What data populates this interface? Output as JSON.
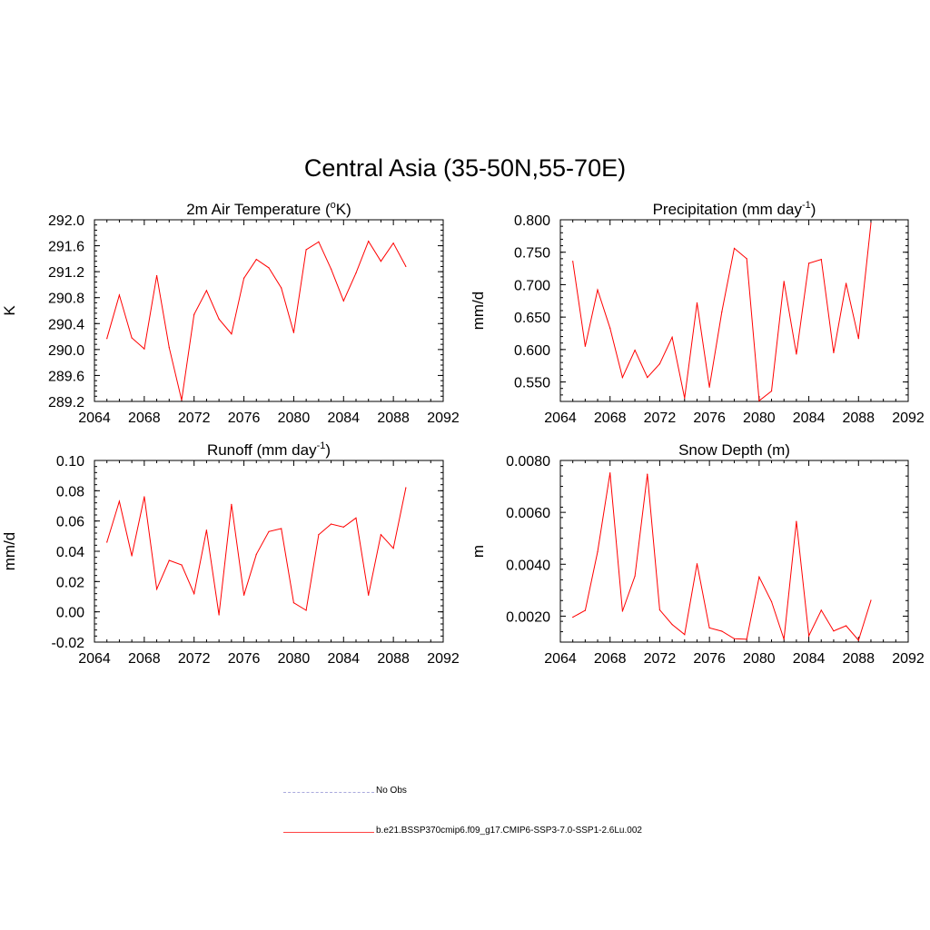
{
  "title": "Central Asia (35-50N,55-70E)",
  "legend": [
    {
      "label": "No Obs",
      "style": "dashed",
      "color": "#aaaadd"
    },
    {
      "label": "b.e21.BSSP370cmip6.f09_g17.CMIP6-SSP3-7.0-SSP1-2.6Lu.002",
      "style": "solid",
      "color": "#ff0000"
    }
  ],
  "chart_data": [
    {
      "type": "line",
      "title": "2m Air Temperature (°K)",
      "title_main": "2m Air Temperature (",
      "title_sup": "o",
      "title_after": "K)",
      "ylabel": "K",
      "xlim": [
        2064,
        2092
      ],
      "ylim": [
        289.2,
        292.0
      ],
      "xticks": [
        2064,
        2068,
        2072,
        2076,
        2080,
        2084,
        2088,
        2092
      ],
      "yticks": [
        "289.2",
        "289.6",
        "290.0",
        "290.4",
        "290.8",
        "291.2",
        "291.6",
        "292.0"
      ],
      "x": [
        2065,
        2066,
        2067,
        2068,
        2069,
        2070,
        2071,
        2072,
        2073,
        2074,
        2075,
        2076,
        2077,
        2078,
        2079,
        2080,
        2081,
        2082,
        2083,
        2084,
        2085,
        2086,
        2087,
        2088,
        2089
      ],
      "y": [
        290.17,
        290.84,
        290.18,
        290.01,
        291.14,
        290.03,
        289.22,
        290.54,
        290.91,
        290.47,
        290.24,
        291.1,
        291.39,
        291.26,
        290.95,
        290.26,
        291.54,
        291.66,
        291.24,
        290.75,
        291.18,
        291.67,
        291.36,
        291.64,
        291.28
      ],
      "color": "#ff0000"
    },
    {
      "type": "line",
      "title": "Precipitation (mm day-1)",
      "title_main": "Precipitation (mm day",
      "title_sup": "-1",
      "title_after": ")",
      "ylabel": "mm/d",
      "xlim": [
        2064,
        2092
      ],
      "ylim": [
        0.52,
        0.8
      ],
      "xticks": [
        2064,
        2068,
        2072,
        2076,
        2080,
        2084,
        2088,
        2092
      ],
      "yticks": [
        "0.550",
        "0.600",
        "0.650",
        "0.700",
        "0.750",
        "0.800"
      ],
      "x": [
        2065,
        2066,
        2067,
        2068,
        2069,
        2070,
        2071,
        2072,
        2073,
        2074,
        2075,
        2076,
        2077,
        2078,
        2079,
        2080,
        2081,
        2082,
        2083,
        2084,
        2085,
        2086,
        2087,
        2088,
        2089
      ],
      "y": [
        0.736,
        0.605,
        0.692,
        0.633,
        0.557,
        0.599,
        0.557,
        0.578,
        0.619,
        0.525,
        0.672,
        0.542,
        0.658,
        0.756,
        0.74,
        0.521,
        0.536,
        0.705,
        0.593,
        0.733,
        0.739,
        0.595,
        0.702,
        0.617,
        0.795
      ],
      "color": "#ff0000"
    },
    {
      "type": "line",
      "title": "Runoff (mm day-1)",
      "title_main": "Runoff (mm day",
      "title_sup": "-1",
      "title_after": ")",
      "ylabel": "mm/d",
      "xlim": [
        2064,
        2092
      ],
      "ylim": [
        -0.02,
        0.1
      ],
      "xticks": [
        2064,
        2068,
        2072,
        2076,
        2080,
        2084,
        2088,
        2092
      ],
      "yticks": [
        "-0.02",
        "0.00",
        "0.02",
        "0.04",
        "0.06",
        "0.08",
        "0.10"
      ],
      "x": [
        2065,
        2066,
        2067,
        2068,
        2069,
        2070,
        2071,
        2072,
        2073,
        2074,
        2075,
        2076,
        2077,
        2078,
        2079,
        2080,
        2081,
        2082,
        2083,
        2084,
        2085,
        2086,
        2087,
        2088,
        2089
      ],
      "y": [
        0.046,
        0.073,
        0.037,
        0.076,
        0.015,
        0.034,
        0.031,
        0.012,
        0.054,
        -0.002,
        0.071,
        0.011,
        0.038,
        0.053,
        0.055,
        0.006,
        0.001,
        0.051,
        0.058,
        0.056,
        0.062,
        0.011,
        0.051,
        0.042,
        0.082
      ],
      "color": "#ff0000"
    },
    {
      "type": "line",
      "title": "Snow Depth (m)",
      "title_main": "Snow Depth (m)",
      "title_sup": "",
      "title_after": "",
      "ylabel": "m",
      "xlim": [
        2064,
        2092
      ],
      "ylim": [
        0.001,
        0.008
      ],
      "xticks": [
        2064,
        2068,
        2072,
        2076,
        2080,
        2084,
        2088,
        2092
      ],
      "yticks": [
        "0.0020",
        "0.0040",
        "0.0060",
        "0.0080"
      ],
      "x": [
        2065,
        2066,
        2067,
        2068,
        2069,
        2070,
        2071,
        2072,
        2073,
        2074,
        2075,
        2076,
        2077,
        2078,
        2079,
        2080,
        2081,
        2082,
        2083,
        2084,
        2085,
        2086,
        2087,
        2088,
        2089
      ],
      "y": [
        0.00196,
        0.00222,
        0.00448,
        0.00752,
        0.00219,
        0.00354,
        0.00747,
        0.00224,
        0.00168,
        0.00129,
        0.00402,
        0.00155,
        0.00142,
        0.00113,
        0.00111,
        0.00351,
        0.00256,
        0.00111,
        0.00565,
        0.00124,
        0.00223,
        0.00143,
        0.00163,
        0.00107,
        0.00261
      ],
      "color": "#ff0000"
    }
  ]
}
